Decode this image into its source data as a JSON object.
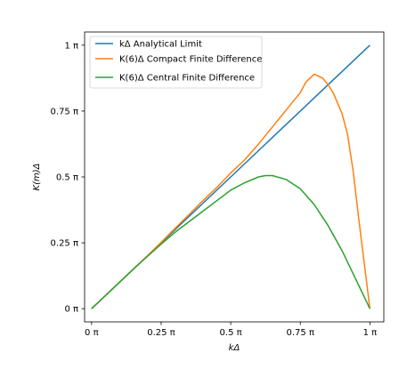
{
  "chart_data": {
    "type": "line",
    "xlabel": "kΔ",
    "ylabel": "K(m)Δ",
    "xlim": [
      -0.025,
      1.05
    ],
    "ylim": [
      -0.05,
      1.05
    ],
    "x_ticks": [
      {
        "value": 0,
        "label": "0 π"
      },
      {
        "value": 0.25,
        "label": "0.25 π"
      },
      {
        "value": 0.5,
        "label": "0.5 π"
      },
      {
        "value": 0.75,
        "label": "0.75 π"
      },
      {
        "value": 1,
        "label": "1 π"
      }
    ],
    "y_ticks": [
      {
        "value": 0,
        "label": "0 π"
      },
      {
        "value": 0.25,
        "label": "0.25 π"
      },
      {
        "value": 0.5,
        "label": "0.5 π"
      },
      {
        "value": 0.75,
        "label": "0.75 π"
      },
      {
        "value": 1,
        "label": "1 π"
      }
    ],
    "grid": false,
    "legend_position": "upper-left",
    "series": [
      {
        "name": "kΔ Analytical Limit",
        "color": "#1f77b4",
        "points": [
          [
            0,
            0
          ],
          [
            0.1,
            0.1
          ],
          [
            0.2,
            0.2
          ],
          [
            0.3,
            0.3
          ],
          [
            0.4,
            0.4
          ],
          [
            0.5,
            0.5
          ],
          [
            0.6,
            0.6
          ],
          [
            0.7,
            0.7
          ],
          [
            0.8,
            0.8
          ],
          [
            0.9,
            0.9
          ],
          [
            1.0,
            1.0
          ]
        ]
      },
      {
        "name": "K(6)Δ Compact Finite Difference",
        "color": "#ff7f0e",
        "points": [
          [
            0,
            0
          ],
          [
            0.05,
            0.05
          ],
          [
            0.1,
            0.1
          ],
          [
            0.15,
            0.15
          ],
          [
            0.2,
            0.2
          ],
          [
            0.25,
            0.252
          ],
          [
            0.3,
            0.305
          ],
          [
            0.35,
            0.357
          ],
          [
            0.4,
            0.41
          ],
          [
            0.45,
            0.46
          ],
          [
            0.5,
            0.515
          ],
          [
            0.55,
            0.565
          ],
          [
            0.6,
            0.625
          ],
          [
            0.65,
            0.69
          ],
          [
            0.7,
            0.755
          ],
          [
            0.75,
            0.82
          ],
          [
            0.77,
            0.86
          ],
          [
            0.8,
            0.89
          ],
          [
            0.83,
            0.875
          ],
          [
            0.85,
            0.85
          ],
          [
            0.87,
            0.815
          ],
          [
            0.9,
            0.74
          ],
          [
            0.92,
            0.66
          ],
          [
            0.94,
            0.52
          ],
          [
            0.96,
            0.34
          ],
          [
            0.98,
            0.17
          ],
          [
            1.0,
            0.0
          ]
        ]
      },
      {
        "name": "K(6)Δ Central Finite Difference",
        "color": "#2ca02c",
        "points": [
          [
            0,
            0
          ],
          [
            0.05,
            0.05
          ],
          [
            0.1,
            0.1
          ],
          [
            0.15,
            0.15
          ],
          [
            0.2,
            0.198
          ],
          [
            0.25,
            0.245
          ],
          [
            0.3,
            0.29
          ],
          [
            0.35,
            0.33
          ],
          [
            0.4,
            0.37
          ],
          [
            0.45,
            0.41
          ],
          [
            0.5,
            0.45
          ],
          [
            0.55,
            0.478
          ],
          [
            0.6,
            0.5
          ],
          [
            0.625,
            0.505
          ],
          [
            0.65,
            0.505
          ],
          [
            0.7,
            0.49
          ],
          [
            0.75,
            0.455
          ],
          [
            0.8,
            0.395
          ],
          [
            0.85,
            0.315
          ],
          [
            0.9,
            0.22
          ],
          [
            0.95,
            0.11
          ],
          [
            1.0,
            0.0
          ]
        ]
      }
    ]
  }
}
